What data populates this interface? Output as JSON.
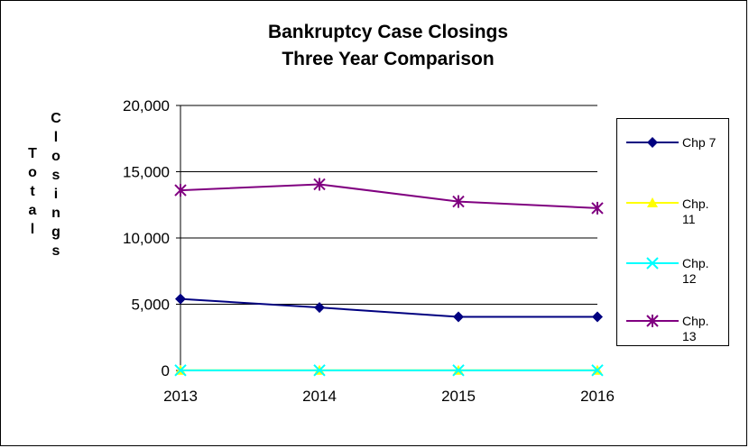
{
  "chart_data": {
    "type": "line",
    "title": "Bankruptcy Case Closings",
    "subtitle": "Three Year Comparison",
    "ylabel": "Total Closings",
    "xlabel": "",
    "categories": [
      "2013",
      "2014",
      "2015",
      "2016"
    ],
    "ylim": [
      0,
      20000
    ],
    "y_ticks": [
      0,
      5000,
      10000,
      15000,
      20000
    ],
    "y_tick_labels": [
      "0",
      "5,000",
      "10,000",
      "15,000",
      "20,000"
    ],
    "grid": "horizontal",
    "legend_position": "right",
    "series": [
      {
        "name": "Chp 7",
        "values": [
          5400,
          4750,
          4050,
          4050
        ],
        "color": "#000080",
        "marker": "diamond"
      },
      {
        "name": "Chp. 11",
        "values": [
          20,
          20,
          20,
          20
        ],
        "color": "#FFFF00",
        "marker": "triangle"
      },
      {
        "name": "Chp. 12",
        "values": [
          10,
          10,
          10,
          10
        ],
        "color": "#00FFFF",
        "marker": "x"
      },
      {
        "name": "Chp. 13",
        "values": [
          13600,
          14050,
          12750,
          12250
        ],
        "color": "#800080",
        "marker": "asterisk"
      }
    ]
  }
}
